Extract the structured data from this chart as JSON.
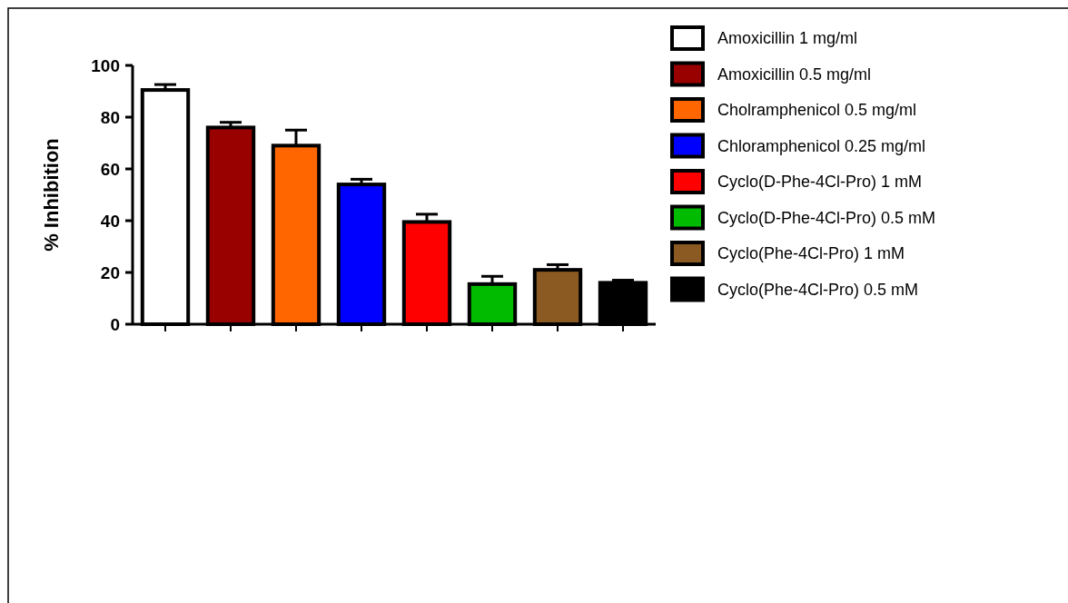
{
  "chart_data": {
    "type": "bar",
    "ylabel": "% Inhibition",
    "categories": [
      null,
      null,
      null,
      null,
      null,
      null,
      null,
      null
    ],
    "ylim": [
      0,
      100
    ],
    "yticks": [
      0,
      20,
      40,
      60,
      80,
      100
    ],
    "legend": "right",
    "series": [
      {
        "name": "Amoxicillin 1 mg/ml",
        "color": "#ffffff",
        "values": [
          90.5,
          null,
          null,
          null,
          null,
          null,
          null,
          null
        ],
        "errors": [
          [
            90.5,
            92.6
          ],
          null,
          null,
          null,
          null,
          null,
          null,
          null
        ]
      },
      {
        "name": "Amoxicillin 0.5 mg/ml",
        "color": "#990000",
        "values": [
          null,
          76,
          null,
          null,
          null,
          null,
          null,
          null
        ],
        "errors": [
          null,
          [
            76,
            78
          ],
          null,
          null,
          null,
          null,
          null,
          null
        ]
      },
      {
        "name": "Cholramphenicol 0.5 mg/ml",
        "color": "#ff6600",
        "values": [
          null,
          null,
          69,
          null,
          null,
          null,
          null,
          null
        ],
        "errors": [
          null,
          null,
          [
            69,
            75
          ],
          null,
          null,
          null,
          null,
          null
        ]
      },
      {
        "name": "Chloramphenicol 0.25 mg/ml",
        "color": "#0000ff",
        "values": [
          null,
          null,
          null,
          54,
          null,
          null,
          null,
          null
        ],
        "errors": [
          null,
          null,
          null,
          [
            54,
            56
          ],
          null,
          null,
          null,
          null
        ]
      },
      {
        "name": "Cyclo(D-Phe-4Cl-Pro) 1 mM",
        "color": "#ff0000",
        "values": [
          null,
          null,
          null,
          null,
          39.5,
          null,
          null,
          null
        ],
        "errors": [
          null,
          null,
          null,
          null,
          [
            39.5,
            42.5
          ],
          null,
          null,
          null
        ]
      },
      {
        "name": "Cyclo(D-Phe-4Cl-Pro) 0.5 mM",
        "color": "#00bb00",
        "values": [
          null,
          null,
          null,
          null,
          null,
          15.5,
          null,
          null
        ],
        "errors": [
          null,
          null,
          null,
          null,
          null,
          [
            15.5,
            18.5
          ],
          null,
          null
        ]
      },
      {
        "name": "Cyclo(Phe-4Cl-Pro) 1 mM",
        "color": "#8b5a22",
        "values": [
          null,
          null,
          null,
          null,
          null,
          null,
          21,
          null
        ],
        "errors": [
          null,
          null,
          null,
          null,
          null,
          null,
          [
            21,
            23
          ],
          null
        ]
      },
      {
        "name": "Cyclo(Phe-4Cl-Pro) 0.5 mM",
        "color": "#000000",
        "values": [
          null,
          null,
          null,
          null,
          null,
          null,
          null,
          16
        ],
        "errors": [
          null,
          null,
          null,
          null,
          null,
          null,
          null,
          [
            16,
            17
          ]
        ]
      }
    ]
  }
}
